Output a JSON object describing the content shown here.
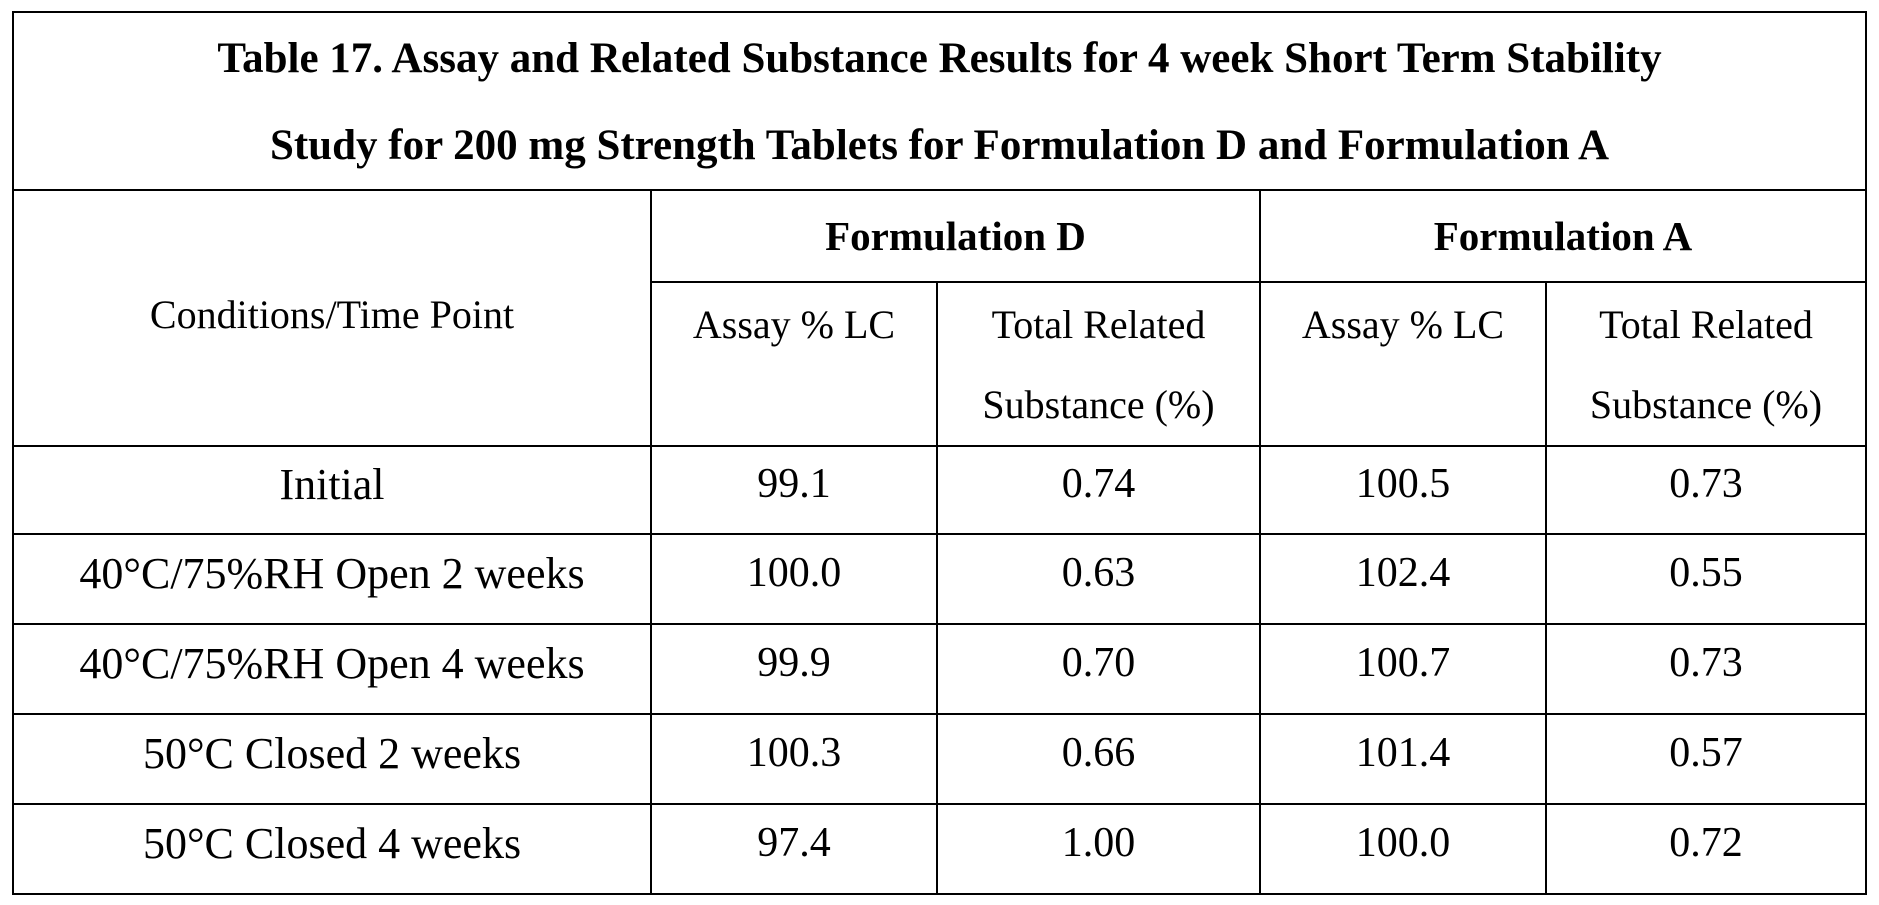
{
  "table": {
    "title_line1": "Table 17. Assay and Related Substance Results for 4 week Short Term Stability",
    "title_line2": "Study for 200 mg Strength Tablets for Formulation D and Formulation A",
    "condition_header": "Conditions/Time Point",
    "groups": [
      "Formulation D",
      "Formulation A"
    ],
    "subheaders": {
      "assay": "Assay % LC",
      "related_line1": "Total Related",
      "related_line2": "Substance (%)"
    },
    "rows": [
      {
        "condition": "Initial",
        "d_assay": "99.1",
        "d_related": "0.74",
        "a_assay": "100.5",
        "a_related": "0.73"
      },
      {
        "condition": "40°C/75%RH Open 2 weeks",
        "d_assay": "100.0",
        "d_related": "0.63",
        "a_assay": "102.4",
        "a_related": "0.55"
      },
      {
        "condition": "40°C/75%RH Open 4 weeks",
        "d_assay": "99.9",
        "d_related": "0.70",
        "a_assay": "100.7",
        "a_related": "0.73"
      },
      {
        "condition": "50°C Closed 2 weeks",
        "d_assay": "100.3",
        "d_related": "0.66",
        "a_assay": "101.4",
        "a_related": "0.57"
      },
      {
        "condition": "50°C Closed 4 weeks",
        "d_assay": "97.4",
        "d_related": "1.00",
        "a_assay": "100.0",
        "a_related": "0.72"
      }
    ]
  }
}
